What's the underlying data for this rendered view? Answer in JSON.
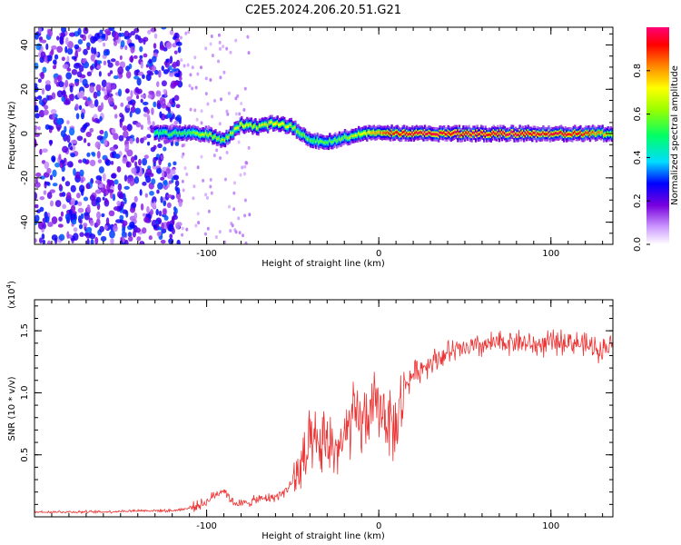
{
  "title": "C2E5.2024.206.20.51.G21",
  "chart_data": [
    {
      "type": "heatmap",
      "xlabel": "Height of straight line (km)",
      "ylabel": "Frequency (Hz)",
      "xlim": [
        -200,
        136
      ],
      "ylim": [
        -50,
        48
      ],
      "xticks": [
        -100,
        0,
        100
      ],
      "xtick_labels": [
        "-100",
        "0",
        "100"
      ],
      "yticks": [
        40,
        20,
        0,
        -20,
        -40
      ],
      "ytick_labels": [
        "40",
        "20",
        "0",
        "-20",
        "-40"
      ],
      "colorbar": {
        "label": "Normalized spectral amplitude",
        "range": [
          0,
          1
        ],
        "ticks": [
          0.0,
          0.2,
          0.4,
          0.6,
          0.8
        ],
        "tick_labels": [
          "0.0",
          "0.2",
          "0.4",
          "0.6",
          "0.8"
        ]
      },
      "ridge": {
        "x": [
          -130,
          -120,
          -110,
          -100,
          -90,
          -80,
          -70,
          -60,
          -50,
          -40,
          -30,
          -20,
          -10,
          0,
          10,
          20,
          40,
          60,
          80,
          100,
          120,
          136
        ],
        "y": [
          0,
          0,
          0,
          0,
          -3,
          4,
          3,
          5,
          3,
          -3,
          -4,
          -2,
          0,
          1,
          0,
          0,
          0,
          0,
          0,
          0,
          0,
          0
        ],
        "amplitude": [
          0.5,
          0.55,
          0.55,
          0.65,
          0.6,
          0.7,
          0.65,
          0.75,
          0.65,
          0.55,
          0.55,
          0.6,
          0.7,
          0.8,
          0.9,
          0.95,
          0.95,
          0.95,
          0.95,
          0.95,
          0.9,
          0.7
        ]
      },
      "noise_region_x": [
        -200,
        -115
      ]
    },
    {
      "type": "line",
      "xlabel": "Height of straight line (km)",
      "ylabel": "SNR (10 * v/v)",
      "scale_label": "(x10",
      "scale_exp": "4",
      "scale_close": ")",
      "xlim": [
        -200,
        136
      ],
      "ylim": [
        0,
        1.75
      ],
      "xticks": [
        -100,
        0,
        100
      ],
      "xtick_labels": [
        "-100",
        "0",
        "100"
      ],
      "yticks": [
        0.5,
        1.0,
        1.5
      ],
      "ytick_labels": [
        "0.5",
        "1.0",
        "1.5"
      ],
      "series": [
        {
          "color": "#ee3333",
          "x": [
            -200,
            -180,
            -160,
            -140,
            -120,
            -110,
            -100,
            -95,
            -90,
            -85,
            -80,
            -75,
            -70,
            -65,
            -60,
            -55,
            -50,
            -45,
            -40,
            -35,
            -30,
            -25,
            -20,
            -15,
            -10,
            -5,
            0,
            5,
            10,
            15,
            20,
            25,
            30,
            40,
            50,
            60,
            70,
            80,
            90,
            100,
            110,
            120,
            130,
            136
          ],
          "y": [
            0.04,
            0.04,
            0.04,
            0.05,
            0.05,
            0.07,
            0.12,
            0.18,
            0.22,
            0.12,
            0.1,
            0.12,
            0.14,
            0.15,
            0.16,
            0.2,
            0.28,
            0.38,
            0.55,
            0.55,
            0.6,
            0.55,
            0.6,
            0.8,
            0.75,
            0.85,
            0.9,
            0.8,
            0.7,
            1.05,
            1.15,
            1.2,
            1.25,
            1.32,
            1.35,
            1.38,
            1.4,
            1.42,
            1.38,
            1.4,
            1.42,
            1.38,
            1.35,
            1.4
          ]
        }
      ]
    }
  ]
}
